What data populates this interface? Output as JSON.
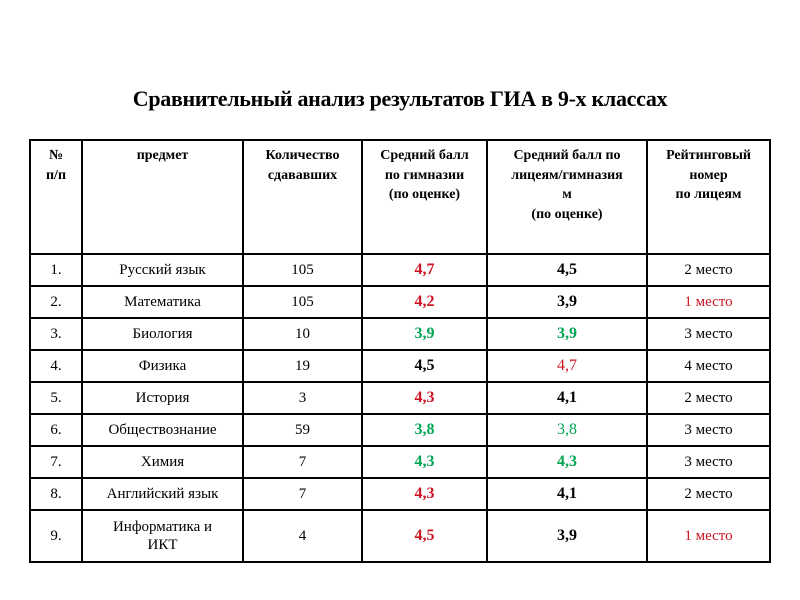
{
  "title": "Сравнительный анализ результатов ГИА в 9-х классах",
  "colors": {
    "red": "#cc1522",
    "green": "#00a651",
    "black": "#000000"
  },
  "table": {
    "headers": [
      "№\nп/п",
      "предмет",
      "Количество\nсдававших",
      "Средний балл\nпо гимназии\n(по оценке)",
      "Средний балл по\nлицеям/гимназия\nм\n(по оценке)",
      "Рейтинговый\nномер\nпо лицеям"
    ],
    "rows": [
      {
        "num": "1.",
        "subject": "Русский язык",
        "count": "105",
        "gymnasium_score": {
          "value": "4,7",
          "color": "red",
          "bold": true
        },
        "lyceum_score": {
          "value": "4,5",
          "color": "black",
          "bold": true
        },
        "rank": {
          "value": "2 место",
          "color": "black"
        }
      },
      {
        "num": "2.",
        "subject": "Математика",
        "count": "105",
        "gymnasium_score": {
          "value": "4,2",
          "color": "red",
          "bold": true
        },
        "lyceum_score": {
          "value": "3,9",
          "color": "black",
          "bold": true
        },
        "rank": {
          "value": "1 место",
          "color": "red"
        }
      },
      {
        "num": "3.",
        "subject": "Биология",
        "count": "10",
        "gymnasium_score": {
          "value": "3,9",
          "color": "green",
          "bold": true
        },
        "lyceum_score": {
          "value": "3,9",
          "color": "green",
          "bold": true
        },
        "rank": {
          "value": "3 место",
          "color": "black"
        }
      },
      {
        "num": "4.",
        "subject": "Физика",
        "count": "19",
        "gymnasium_score": {
          "value": "4,5",
          "color": "black",
          "bold": true
        },
        "lyceum_score": {
          "value": "4,7",
          "color": "red",
          "bold": false
        },
        "rank": {
          "value": "4 место",
          "color": "black"
        }
      },
      {
        "num": "5.",
        "subject": "История",
        "count": "3",
        "gymnasium_score": {
          "value": "4,3",
          "color": "red",
          "bold": true
        },
        "lyceum_score": {
          "value": "4,1",
          "color": "black",
          "bold": true
        },
        "rank": {
          "value": "2 место",
          "color": "black"
        }
      },
      {
        "num": "6.",
        "subject": "Обществознание",
        "count": "59",
        "gymnasium_score": {
          "value": "3,8",
          "color": "green",
          "bold": true
        },
        "lyceum_score": {
          "value": "3,8",
          "color": "green",
          "bold": false
        },
        "rank": {
          "value": "3 место",
          "color": "black"
        }
      },
      {
        "num": "7.",
        "subject": "Химия",
        "count": "7",
        "gymnasium_score": {
          "value": "4,3",
          "color": "green",
          "bold": true
        },
        "lyceum_score": {
          "value": "4,3",
          "color": "green",
          "bold": true
        },
        "rank": {
          "value": "3 место",
          "color": "black"
        }
      },
      {
        "num": "8.",
        "subject": "Английский язык",
        "count": "7",
        "gymnasium_score": {
          "value": "4,3",
          "color": "red",
          "bold": true
        },
        "lyceum_score": {
          "value": "4,1",
          "color": "black",
          "bold": true
        },
        "rank": {
          "value": "2 место",
          "color": "black"
        }
      },
      {
        "num": "9.",
        "subject": "Информатика и\nИКТ",
        "count": "4",
        "gymnasium_score": {
          "value": "4,5",
          "color": "red",
          "bold": true
        },
        "lyceum_score": {
          "value": "3,9",
          "color": "black",
          "bold": true
        },
        "rank": {
          "value": "1 место",
          "color": "red"
        }
      }
    ]
  }
}
